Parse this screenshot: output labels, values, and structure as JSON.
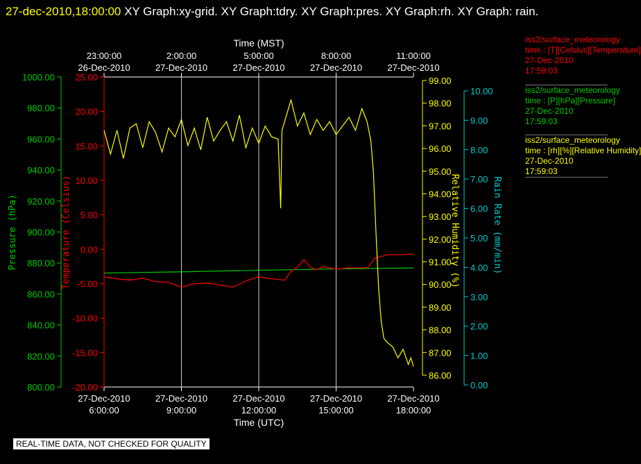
{
  "title": {
    "timestamp": "27-dec-2010,18:00:00",
    "rest": " XY Graph:xy-grid.  XY Graph:tdry.  XY Graph:pres.  XY Graph:rh.  XY Graph: rain."
  },
  "chart_data": {
    "type": "line",
    "top_axis": {
      "label": "Time (MST)",
      "ticks": [
        {
          "time": "23:00:00",
          "date": "26-Dec-2010"
        },
        {
          "time": "2:00:00",
          "date": "27-Dec-2010"
        },
        {
          "time": "5:00:00",
          "date": "27-Dec-2010"
        },
        {
          "time": "8:00:00",
          "date": "27-Dec-2010"
        },
        {
          "time": "11:00:00",
          "date": "27-Dec-2010"
        }
      ]
    },
    "bottom_axis": {
      "label": "Time (UTC)",
      "range_hours": [
        6,
        18
      ],
      "ticks": [
        {
          "date": "27-Dec-2010",
          "time": "6:00:00"
        },
        {
          "date": "27-Dec-2010",
          "time": "9:00:00"
        },
        {
          "date": "27-Dec-2010",
          "time": "12:00:00"
        },
        {
          "date": "27-Dec-2010",
          "time": "15:00:00"
        },
        {
          "date": "27-Dec-2010",
          "time": "18:00:00"
        }
      ]
    },
    "y_axes": [
      {
        "id": "pres",
        "label": "Pressure (hPa)",
        "color": "#00cc00",
        "range": [
          800,
          1000
        ],
        "ticks": [
          "1000.00",
          "980.00",
          "960.00",
          "940.00",
          "920.00",
          "900.00",
          "880.00",
          "860.00",
          "840.00",
          "820.00",
          "800.00"
        ]
      },
      {
        "id": "tdry",
        "label": "Temperature (Celsius)",
        "color": "#ff0000",
        "range": [
          -20,
          25
        ],
        "ticks": [
          "25.00",
          "20.00",
          "15.00",
          "10.00",
          "5.00",
          "0.00",
          "-5.00",
          "-10.00",
          "-15.00",
          "-20.00"
        ]
      },
      {
        "id": "rh",
        "label": "Relative Humidity (%)",
        "color": "#ffff00",
        "range": [
          85.5,
          99.1
        ],
        "ticks": [
          "99.00",
          "98.00",
          "97.00",
          "96.00",
          "95.00",
          "94.00",
          "93.00",
          "92.00",
          "91.00",
          "90.00",
          "89.00",
          "88.00",
          "87.00",
          "86.00"
        ]
      },
      {
        "id": "rain",
        "label": "Rain Rate (mm/min)",
        "color": "#00cccc",
        "range": [
          0,
          10.6
        ],
        "ticks": [
          "10.00",
          "9.00",
          "8.00",
          "7.00",
          "6.00",
          "5.00",
          "4.00",
          "3.00",
          "2.00",
          "1.00",
          "0.00"
        ]
      }
    ],
    "grid": "vertical",
    "series": [
      {
        "axis": "pres",
        "color": "#00cc00",
        "x": [
          6,
          9,
          12,
          15,
          18
        ],
        "y": [
          873.5,
          874.3,
          875.3,
          876.2,
          876.8
        ]
      },
      {
        "axis": "tdry",
        "color": "#ff0000",
        "x": [
          6,
          6.5,
          7,
          7.5,
          8,
          8.5,
          9,
          9.5,
          10,
          10.5,
          11,
          11.5,
          12,
          12.5,
          13,
          13.25,
          13.5,
          13.75,
          14,
          14.25,
          14.5,
          15,
          15.5,
          16,
          16.25,
          16.5,
          17,
          17.5,
          18
        ],
        "y": [
          -4.0,
          -4.3,
          -4.5,
          -4.2,
          -4.7,
          -4.8,
          -5.5,
          -5.0,
          -4.9,
          -5.2,
          -5.5,
          -4.6,
          -4.0,
          -4.3,
          -4.5,
          -3.2,
          -2.6,
          -1.5,
          -2.6,
          -3.0,
          -2.5,
          -2.9,
          -2.7,
          -2.7,
          -2.6,
          -1.3,
          -0.8,
          -0.8,
          -0.7
        ]
      },
      {
        "axis": "rh",
        "color": "#ffff00",
        "x": [
          6,
          6.25,
          6.5,
          6.75,
          7,
          7.25,
          7.5,
          7.75,
          8,
          8.25,
          8.5,
          8.75,
          9,
          9.25,
          9.5,
          9.75,
          10,
          10.25,
          10.5,
          10.75,
          11,
          11.25,
          11.5,
          11.75,
          12,
          12.25,
          12.5,
          12.75,
          12.85,
          12.9,
          13,
          13.25,
          13.5,
          13.75,
          14,
          14.25,
          14.5,
          14.75,
          15,
          15.25,
          15.5,
          15.75,
          16,
          16.2,
          16.35,
          16.45,
          16.55,
          16.65,
          16.75,
          16.85,
          17,
          17.2,
          17.4,
          17.6,
          17.8,
          17.9,
          18
        ],
        "y": [
          96.8,
          95.7,
          96.8,
          95.5,
          96.9,
          97.1,
          96.0,
          97.2,
          96.7,
          95.8,
          96.9,
          96.5,
          97.3,
          96.1,
          96.9,
          95.9,
          97.4,
          96.3,
          96.8,
          97.2,
          96.3,
          97.5,
          96.0,
          96.9,
          96.2,
          97.0,
          96.5,
          96.4,
          93.2,
          96.8,
          97.2,
          98.2,
          97.0,
          97.6,
          96.6,
          97.3,
          96.8,
          97.2,
          96.6,
          97.0,
          97.4,
          96.8,
          97.8,
          97.2,
          96.3,
          94.8,
          92.0,
          89.5,
          88.0,
          87.2,
          87.0,
          86.8,
          86.3,
          86.7,
          86.0,
          86.3,
          85.9
        ]
      }
    ]
  },
  "legend": [
    {
      "color": "#ff0000",
      "line1": "iss2/surface_meteorology",
      "line2": "time : [T][Celsius][Temperature]",
      "date": "27-Dec-2010",
      "time": "17:59:03"
    },
    {
      "color": "#00cc00",
      "line1": "iss2/surface_meteorology",
      "line2": "time : [P][hPa][Pressure]",
      "date": "27-Dec-2010",
      "time": "17:59:03"
    },
    {
      "color": "#ffff00",
      "line1": "iss2/surface_meteorology",
      "line2": "time : [rh][%][Relative Humidity]",
      "date": "27-Dec-2010",
      "time": "17:59:03"
    }
  ],
  "footer": {
    "quality_note": "REAL-TIME DATA, NOT CHECKED FOR QUALITY"
  }
}
